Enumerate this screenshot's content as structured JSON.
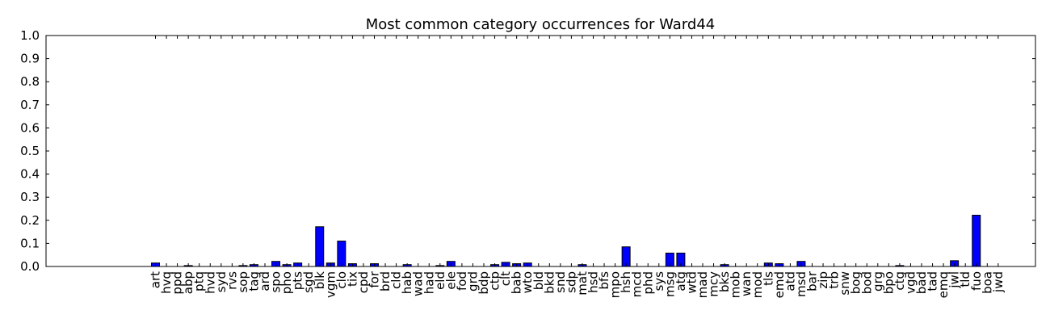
{
  "chart_data": {
    "type": "bar",
    "title": "Most common category occurrences for Ward44",
    "xlabel": "",
    "ylabel": "",
    "ylim": [
      0,
      1.0
    ],
    "yticks": [
      "0.0",
      "0.1",
      "0.2",
      "0.3",
      "0.4",
      "0.5",
      "0.6",
      "0.7",
      "0.8",
      "0.9",
      "1.0"
    ],
    "grid": false,
    "bar_color": "#0000ff",
    "categories": [
      "art",
      "hvq",
      "ppd",
      "abp",
      "ptq",
      "hvd",
      "syd",
      "rvs",
      "sop",
      "tag",
      "ard",
      "spo",
      "pho",
      "pts",
      "sgd",
      "blk",
      "vgm",
      "clo",
      "tix",
      "cpd",
      "for",
      "brd",
      "cld",
      "hab",
      "wad",
      "had",
      "eld",
      "ele",
      "fod",
      "grd",
      "bdp",
      "ctp",
      "clt",
      "bab",
      "wto",
      "bld",
      "bkd",
      "snd",
      "sdp",
      "mat",
      "hsd",
      "bfs",
      "mpo",
      "hsh",
      "mcd",
      "phd",
      "sys",
      "msg",
      "atg",
      "wtd",
      "mad",
      "mcy",
      "bks",
      "mob",
      "wan",
      "mod",
      "tls",
      "emd",
      "atd",
      "msd",
      "bar",
      "zip",
      "trb",
      "snw",
      "bog",
      "bod",
      "grg",
      "bpo",
      "ctg",
      "vgd",
      "bad",
      "tad",
      "emq",
      "jwl",
      "tld",
      "fuo",
      "boa",
      "jwd"
    ],
    "values": [
      0.015,
      0,
      0,
      0.004,
      0,
      0,
      0,
      0,
      0.004,
      0.008,
      0,
      0.022,
      0.008,
      0.015,
      0,
      0.172,
      0.015,
      0.11,
      0.012,
      0,
      0.012,
      0,
      0,
      0.008,
      0,
      0,
      0.004,
      0.022,
      0,
      0,
      0,
      0.008,
      0.018,
      0.012,
      0.015,
      0,
      0,
      0,
      0,
      0.008,
      0,
      0,
      0,
      0.085,
      0,
      0,
      0,
      0.058,
      0.058,
      0,
      0,
      0,
      0.008,
      0,
      0,
      0,
      0.015,
      0.012,
      0,
      0.022,
      0,
      0,
      0,
      0,
      0,
      0,
      0,
      0,
      0.004,
      0,
      0,
      0,
      0,
      0.025,
      0,
      0.222,
      0,
      0
    ]
  }
}
